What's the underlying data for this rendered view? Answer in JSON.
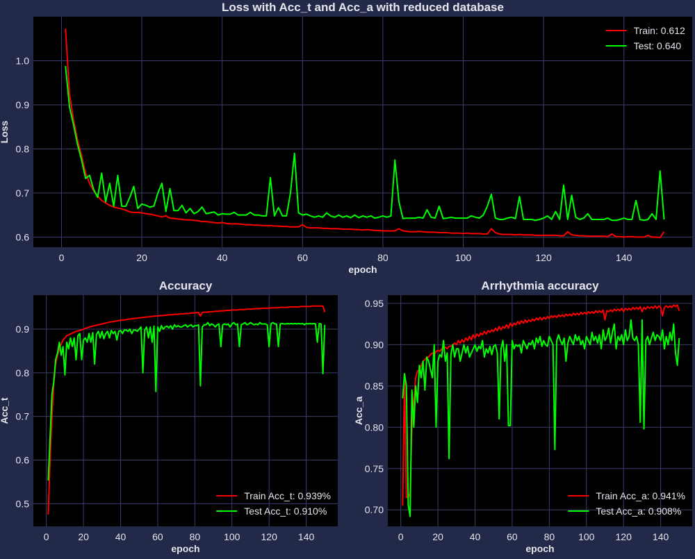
{
  "colors": {
    "background": "#232948",
    "axes_face": "#000000",
    "grid": "#3b3f6b",
    "text": "#e6e6ee",
    "train": "#ff0000",
    "test": "#00ff00"
  },
  "chart_data": [
    {
      "type": "line",
      "title": "Loss with Acc_t and Acc_a with reduced database",
      "xlabel": "epoch",
      "ylabel": "Loss",
      "xlim": [
        -7,
        157
      ],
      "ylim": [
        0.577,
        1.1
      ],
      "xticks": [
        0,
        20,
        40,
        60,
        80,
        100,
        120,
        140
      ],
      "yticks": [
        0.6,
        0.7,
        0.8,
        0.9,
        1.0
      ],
      "ytick_decimals": 1,
      "grid": true,
      "legend_position": "top-right",
      "series": [
        {
          "name": "Train: 0.612",
          "color": "#ff0000",
          "x_start": 1,
          "values": [
            1.073,
            0.925,
            0.865,
            0.82,
            0.785,
            0.745,
            0.722,
            0.705,
            0.693,
            0.683,
            0.677,
            0.672,
            0.668,
            0.666,
            0.664,
            0.661,
            0.657,
            0.656,
            0.656,
            0.655,
            0.653,
            0.652,
            0.65,
            0.648,
            0.646,
            0.648,
            0.643,
            0.642,
            0.641,
            0.64,
            0.639,
            0.639,
            0.638,
            0.637,
            0.635,
            0.635,
            0.634,
            0.633,
            0.632,
            0.633,
            0.631,
            0.63,
            0.63,
            0.63,
            0.629,
            0.628,
            0.628,
            0.627,
            0.627,
            0.626,
            0.626,
            0.626,
            0.625,
            0.625,
            0.624,
            0.624,
            0.623,
            0.623,
            0.623,
            0.628,
            0.622,
            0.621,
            0.621,
            0.621,
            0.62,
            0.62,
            0.619,
            0.619,
            0.619,
            0.618,
            0.618,
            0.618,
            0.617,
            0.617,
            0.616,
            0.617,
            0.616,
            0.615,
            0.615,
            0.614,
            0.614,
            0.614,
            0.614,
            0.619,
            0.614,
            0.613,
            0.612,
            0.612,
            0.613,
            0.612,
            0.611,
            0.611,
            0.611,
            0.61,
            0.61,
            0.61,
            0.609,
            0.609,
            0.609,
            0.608,
            0.609,
            0.608,
            0.608,
            0.608,
            0.607,
            0.607,
            0.619,
            0.61,
            0.607,
            0.606,
            0.606,
            0.606,
            0.605,
            0.606,
            0.605,
            0.605,
            0.605,
            0.604,
            0.604,
            0.604,
            0.604,
            0.604,
            0.604,
            0.603,
            0.603,
            0.612,
            0.605,
            0.604,
            0.603,
            0.603,
            0.602,
            0.602,
            0.602,
            0.602,
            0.602,
            0.601,
            0.607,
            0.601,
            0.601,
            0.6,
            0.601,
            0.601,
            0.6,
            0.6,
            0.6,
            0.604,
            0.6,
            0.6,
            0.599,
            0.612
          ]
        },
        {
          "name": "Test: 0.640",
          "color": "#00ff00",
          "x_start": 1,
          "values": [
            0.988,
            0.895,
            0.855,
            0.81,
            0.775,
            0.733,
            0.74,
            0.708,
            0.69,
            0.745,
            0.68,
            0.722,
            0.67,
            0.74,
            0.67,
            0.67,
            0.69,
            0.715,
            0.665,
            0.675,
            0.672,
            0.668,
            0.67,
            0.7,
            0.722,
            0.658,
            0.71,
            0.66,
            0.66,
            0.672,
            0.655,
            0.665,
            0.653,
            0.658,
            0.668,
            0.653,
            0.655,
            0.657,
            0.65,
            0.653,
            0.652,
            0.652,
            0.656,
            0.65,
            0.65,
            0.65,
            0.656,
            0.65,
            0.65,
            0.648,
            0.648,
            0.735,
            0.648,
            0.667,
            0.648,
            0.648,
            0.7,
            0.79,
            0.655,
            0.65,
            0.652,
            0.648,
            0.645,
            0.648,
            0.645,
            0.655,
            0.648,
            0.645,
            0.65,
            0.645,
            0.648,
            0.644,
            0.65,
            0.644,
            0.648,
            0.645,
            0.648,
            0.643,
            0.645,
            0.648,
            0.645,
            0.648,
            0.775,
            0.68,
            0.642,
            0.643,
            0.643,
            0.643,
            0.645,
            0.643,
            0.662,
            0.645,
            0.643,
            0.67,
            0.642,
            0.643,
            0.645,
            0.643,
            0.643,
            0.643,
            0.643,
            0.648,
            0.645,
            0.643,
            0.65,
            0.67,
            0.697,
            0.643,
            0.64,
            0.64,
            0.643,
            0.645,
            0.642,
            0.692,
            0.64,
            0.64,
            0.64,
            0.638,
            0.64,
            0.643,
            0.648,
            0.64,
            0.658,
            0.64,
            0.718,
            0.64,
            0.695,
            0.645,
            0.64,
            0.643,
            0.653,
            0.64,
            0.64,
            0.64,
            0.64,
            0.643,
            0.638,
            0.638,
            0.64,
            0.643,
            0.64,
            0.64,
            0.683,
            0.64,
            0.638,
            0.64,
            0.653,
            0.64,
            0.75,
            0.64
          ]
        }
      ]
    },
    {
      "type": "line",
      "title": "Accuracy",
      "xlabel": "epoch",
      "ylabel": "Acc_t",
      "xlim": [
        -7,
        157
      ],
      "ylim": [
        0.448,
        0.978
      ],
      "xticks": [
        0,
        20,
        40,
        60,
        80,
        100,
        120,
        140
      ],
      "yticks": [
        0.5,
        0.6,
        0.7,
        0.8,
        0.9
      ],
      "ytick_decimals": 1,
      "grid": true,
      "legend_position": "bottom-right",
      "series": [
        {
          "name": "Train Acc_t: 0.939%",
          "color": "#ff0000",
          "x_start": 1,
          "values": [
            0.475,
            0.6,
            0.7,
            0.775,
            0.82,
            0.84,
            0.855,
            0.866,
            0.875,
            0.88,
            0.885,
            0.887,
            0.889,
            0.891,
            0.893,
            0.895,
            0.896,
            0.897,
            0.898,
            0.9,
            0.902,
            0.903,
            0.905,
            0.906,
            0.907,
            0.908,
            0.909,
            0.91,
            0.911,
            0.912,
            0.913,
            0.914,
            0.915,
            0.916,
            0.917,
            0.917,
            0.918,
            0.919,
            0.92,
            0.92,
            0.921,
            0.921,
            0.922,
            0.923,
            0.923,
            0.924,
            0.924,
            0.925,
            0.925,
            0.926,
            0.926,
            0.927,
            0.927,
            0.928,
            0.928,
            0.929,
            0.929,
            0.93,
            0.93,
            0.93,
            0.931,
            0.931,
            0.931,
            0.932,
            0.932,
            0.933,
            0.933,
            0.933,
            0.934,
            0.934,
            0.934,
            0.935,
            0.935,
            0.935,
            0.936,
            0.936,
            0.936,
            0.937,
            0.937,
            0.937,
            0.938,
            0.938,
            0.93,
            0.938,
            0.939,
            0.939,
            0.939,
            0.94,
            0.94,
            0.94,
            0.941,
            0.941,
            0.941,
            0.942,
            0.942,
            0.942,
            0.943,
            0.943,
            0.943,
            0.944,
            0.944,
            0.944,
            0.944,
            0.945,
            0.945,
            0.945,
            0.945,
            0.946,
            0.946,
            0.946,
            0.946,
            0.947,
            0.947,
            0.947,
            0.947,
            0.948,
            0.948,
            0.948,
            0.948,
            0.948,
            0.949,
            0.949,
            0.949,
            0.949,
            0.949,
            0.95,
            0.95,
            0.95,
            0.95,
            0.95,
            0.951,
            0.951,
            0.951,
            0.951,
            0.951,
            0.951,
            0.952,
            0.952,
            0.952,
            0.952,
            0.952,
            0.952,
            0.953,
            0.953,
            0.953,
            0.953,
            0.953,
            0.953,
            0.953,
            0.939
          ]
        },
        {
          "name": "Test Acc_t: 0.910%",
          "color": "#00ff00",
          "x_start": 1,
          "values": [
            0.553,
            0.65,
            0.75,
            0.78,
            0.83,
            0.845,
            0.87,
            0.84,
            0.86,
            0.795,
            0.87,
            0.855,
            0.88,
            0.86,
            0.88,
            0.83,
            0.885,
            0.89,
            0.83,
            0.875,
            0.88,
            0.87,
            0.89,
            0.87,
            0.892,
            0.82,
            0.888,
            0.895,
            0.88,
            0.895,
            0.878,
            0.89,
            0.895,
            0.88,
            0.897,
            0.89,
            0.895,
            0.875,
            0.895,
            0.897,
            0.89,
            0.898,
            0.898,
            0.895,
            0.9,
            0.89,
            0.898,
            0.898,
            0.895,
            0.9,
            0.905,
            0.8,
            0.898,
            0.905,
            0.88,
            0.905,
            0.87,
            0.907,
            0.757,
            0.905,
            0.895,
            0.908,
            0.9,
            0.905,
            0.907,
            0.903,
            0.908,
            0.9,
            0.91,
            0.905,
            0.908,
            0.905,
            0.905,
            0.908,
            0.91,
            0.905,
            0.908,
            0.91,
            0.905,
            0.908,
            0.908,
            0.91,
            0.77,
            0.905,
            0.91,
            0.91,
            0.915,
            0.908,
            0.912,
            0.91,
            0.905,
            0.91,
            0.912,
            0.86,
            0.91,
            0.912,
            0.91,
            0.912,
            0.905,
            0.912,
            0.915,
            0.91,
            0.912,
            0.86,
            0.91,
            0.912,
            0.915,
            0.91,
            0.912,
            0.915,
            0.912,
            0.91,
            0.912,
            0.91,
            0.915,
            0.912,
            0.912,
            0.912,
            0.91,
            0.86,
            0.912,
            0.915,
            0.912,
            0.912,
            0.86,
            0.912,
            0.913,
            0.912,
            0.912,
            0.913,
            0.912,
            0.913,
            0.912,
            0.913,
            0.912,
            0.913,
            0.912,
            0.913,
            0.91,
            0.913,
            0.912,
            0.913,
            0.912,
            0.913,
            0.912,
            0.87,
            0.913,
            0.912,
            0.798,
            0.91
          ]
        }
      ]
    },
    {
      "type": "line",
      "title": "Arrhythmia accuracy",
      "xlabel": "epoch",
      "ylabel": "Acc_a",
      "xlim": [
        -7,
        157
      ],
      "ylim": [
        0.68,
        0.96
      ],
      "xticks": [
        0,
        20,
        40,
        60,
        80,
        100,
        120,
        140
      ],
      "yticks": [
        0.7,
        0.75,
        0.8,
        0.85,
        0.9,
        0.95
      ],
      "ytick_decimals": 2,
      "grid": true,
      "legend_position": "bottom-right",
      "series": [
        {
          "name": "Train Acc_a: 0.941%",
          "color": "#ff0000",
          "x_start": 1,
          "values": [
            0.705,
            0.86,
            0.715,
            0.715,
            0.72,
            0.8,
            0.83,
            0.86,
            0.868,
            0.87,
            0.875,
            0.88,
            0.882,
            0.885,
            0.885,
            0.888,
            0.89,
            0.888,
            0.892,
            0.893,
            0.892,
            0.895,
            0.896,
            0.897,
            0.895,
            0.898,
            0.898,
            0.9,
            0.902,
            0.9,
            0.905,
            0.902,
            0.906,
            0.903,
            0.908,
            0.905,
            0.91,
            0.906,
            0.912,
            0.908,
            0.913,
            0.91,
            0.914,
            0.912,
            0.916,
            0.913,
            0.917,
            0.915,
            0.918,
            0.916,
            0.92,
            0.917,
            0.922,
            0.918,
            0.922,
            0.92,
            0.924,
            0.92,
            0.926,
            0.922,
            0.926,
            0.924,
            0.928,
            0.925,
            0.929,
            0.926,
            0.93,
            0.927,
            0.93,
            0.928,
            0.931,
            0.929,
            0.932,
            0.93,
            0.933,
            0.93,
            0.933,
            0.931,
            0.934,
            0.932,
            0.935,
            0.933,
            0.935,
            0.933,
            0.936,
            0.934,
            0.936,
            0.934,
            0.937,
            0.935,
            0.937,
            0.935,
            0.938,
            0.936,
            0.938,
            0.936,
            0.939,
            0.937,
            0.939,
            0.937,
            0.94,
            0.938,
            0.94,
            0.938,
            0.941,
            0.939,
            0.941,
            0.939,
            0.942,
            0.93,
            0.941,
            0.94,
            0.942,
            0.94,
            0.943,
            0.941,
            0.943,
            0.941,
            0.944,
            0.94,
            0.944,
            0.942,
            0.944,
            0.942,
            0.945,
            0.943,
            0.945,
            0.943,
            0.946,
            0.94,
            0.945,
            0.943,
            0.946,
            0.944,
            0.946,
            0.944,
            0.947,
            0.944,
            0.947,
            0.945,
            0.935,
            0.945,
            0.947,
            0.945,
            0.947,
            0.945,
            0.948,
            0.946,
            0.948,
            0.941
          ]
        },
        {
          "name": "Test Acc_a: 0.908%",
          "color": "#00ff00",
          "x_start": 1,
          "values": [
            0.835,
            0.865,
            0.85,
            0.706,
            0.692,
            0.845,
            0.8,
            0.85,
            0.83,
            0.875,
            0.86,
            0.88,
            0.845,
            0.885,
            0.88,
            0.87,
            0.86,
            0.9,
            0.8,
            0.88,
            0.888,
            0.885,
            0.905,
            0.88,
            0.89,
            0.762,
            0.888,
            0.9,
            0.885,
            0.895,
            0.895,
            0.88,
            0.89,
            0.9,
            0.89,
            0.898,
            0.885,
            0.89,
            0.895,
            0.9,
            0.892,
            0.898,
            0.895,
            0.905,
            0.885,
            0.895,
            0.89,
            0.898,
            0.888,
            0.898,
            0.9,
            0.89,
            0.81,
            0.895,
            0.905,
            0.88,
            0.9,
            0.802,
            0.802,
            0.905,
            0.895,
            0.9,
            0.898,
            0.9,
            0.89,
            0.905,
            0.9,
            0.895,
            0.902,
            0.9,
            0.905,
            0.895,
            0.908,
            0.902,
            0.91,
            0.898,
            0.905,
            0.9,
            0.898,
            0.91,
            0.905,
            0.9,
            0.773,
            0.905,
            0.912,
            0.905,
            0.9,
            0.908,
            0.88,
            0.902,
            0.91,
            0.905,
            0.9,
            0.912,
            0.905,
            0.91,
            0.9,
            0.905,
            0.895,
            0.91,
            0.905,
            0.9,
            0.915,
            0.905,
            0.91,
            0.902,
            0.912,
            0.895,
            0.918,
            0.905,
            0.91,
            0.92,
            0.902,
            0.915,
            0.925,
            0.895,
            0.91,
            0.905,
            0.912,
            0.9,
            0.918,
            0.905,
            0.91,
            0.93,
            0.908,
            0.905,
            0.91,
            0.9,
            0.806,
            0.93,
            0.798,
            0.905,
            0.91,
            0.9,
            0.908,
            0.915,
            0.905,
            0.912,
            0.91,
            0.905,
            0.918,
            0.895,
            0.91,
            0.9,
            0.915,
            0.905,
            0.925,
            0.89,
            0.875,
            0.908
          ]
        }
      ]
    }
  ]
}
